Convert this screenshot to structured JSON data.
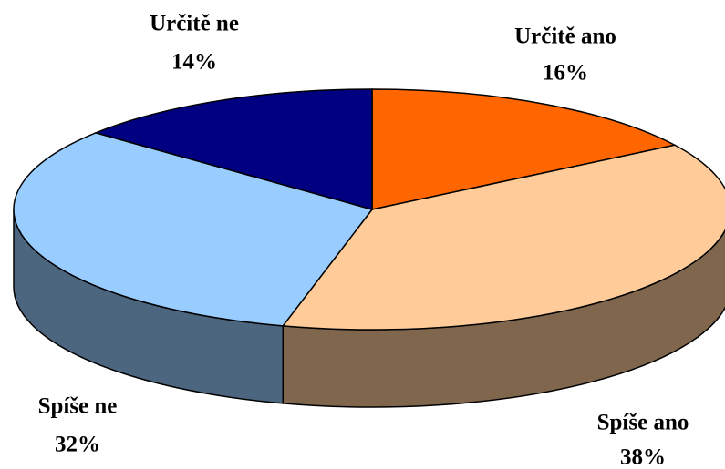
{
  "chart_data": {
    "type": "pie3d",
    "categories": [
      "Určitě ano",
      "Spíše ano",
      "Spíše ne",
      "Určitě ne"
    ],
    "values": [
      16,
      38,
      32,
      14
    ],
    "value_labels": [
      "16%",
      "38%",
      "32%",
      "14%"
    ],
    "colors": [
      "#ff6600",
      "#ffcc99",
      "#99ccff",
      "#000080"
    ]
  }
}
